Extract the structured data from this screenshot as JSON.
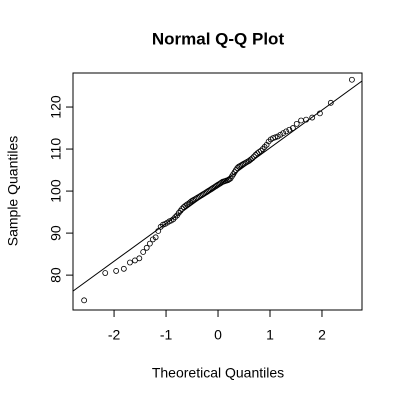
{
  "chart_data": {
    "type": "scatter",
    "title": "Normal Q-Q Plot",
    "x_label": "Theoretical Quantiles",
    "y_label": "Sample Quantiles",
    "xlim": [
      -2.79,
      2.77
    ],
    "ylim": [
      71.7,
      128.1
    ],
    "xticks": [
      -2,
      -1,
      0,
      1,
      2
    ],
    "yticks": [
      80,
      90,
      100,
      110,
      120
    ],
    "color": "#000000",
    "reference_line": {
      "x": [
        -2.79,
        2.77
      ],
      "y": [
        76.2,
        126.2
      ]
    },
    "x": [
      -2.576,
      -2.17,
      -1.96,
      -1.812,
      -1.695,
      -1.598,
      -1.514,
      -1.44,
      -1.372,
      -1.311,
      -1.254,
      -1.2,
      -1.15,
      -1.103,
      -1.058,
      -1.015,
      -0.974,
      -0.935,
      -0.896,
      -0.86,
      -0.824,
      -0.789,
      -0.755,
      -0.722,
      -0.69,
      -0.659,
      -0.628,
      -0.598,
      -0.568,
      -0.539,
      -0.51,
      -0.482,
      -0.454,
      -0.426,
      -0.399,
      -0.372,
      -0.345,
      -0.319,
      -0.292,
      -0.266,
      -0.24,
      -0.215,
      -0.189,
      -0.164,
      -0.138,
      -0.113,
      -0.088,
      -0.063,
      -0.038,
      -0.013,
      0.013,
      0.038,
      0.063,
      0.088,
      0.113,
      0.138,
      0.164,
      0.189,
      0.215,
      0.24,
      0.266,
      0.292,
      0.319,
      0.345,
      0.372,
      0.399,
      0.426,
      0.454,
      0.482,
      0.51,
      0.539,
      0.568,
      0.598,
      0.628,
      0.659,
      0.69,
      0.722,
      0.755,
      0.789,
      0.824,
      0.86,
      0.896,
      0.935,
      0.974,
      1.015,
      1.058,
      1.103,
      1.15,
      1.2,
      1.254,
      1.311,
      1.372,
      1.44,
      1.514,
      1.598,
      1.695,
      1.812,
      1.96,
      2.17,
      2.576
    ],
    "values": [
      74,
      80.5,
      81,
      81.5,
      83,
      83.5,
      84,
      85.5,
      86.5,
      87.5,
      88.5,
      89,
      90.5,
      91.5,
      92,
      92.2,
      92.5,
      92.8,
      93,
      93.3,
      93.8,
      94.2,
      94.8,
      95.3,
      95.8,
      96.2,
      96.5,
      96.8,
      97,
      97.3,
      97.6,
      97.8,
      98,
      98.2,
      98.4,
      98.6,
      98.8,
      99,
      99.2,
      99.4,
      99.6,
      99.8,
      100,
      100.2,
      100.4,
      100.6,
      100.8,
      101,
      101.2,
      101.4,
      101.6,
      101.8,
      102,
      102.2,
      102.3,
      102.4,
      102.5,
      102.6,
      102.8,
      103,
      103.5,
      104,
      104.5,
      105,
      105.5,
      105.8,
      106,
      106.2,
      106.4,
      106.6,
      106.8,
      107,
      107.2,
      107.5,
      107.8,
      108.2,
      108.6,
      109,
      109.3,
      109.6,
      110,
      110.5,
      111,
      111.8,
      112.3,
      112.6,
      112.8,
      113,
      113.4,
      113.8,
      114.2,
      114.6,
      115,
      116,
      116.8,
      117,
      117.5,
      118.5,
      121,
      126.5
    ]
  }
}
